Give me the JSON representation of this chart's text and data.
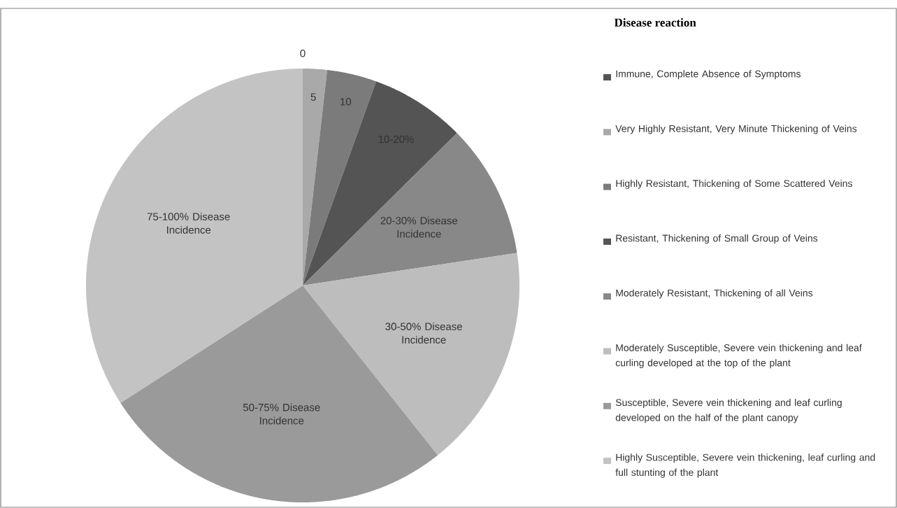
{
  "chart_data": {
    "type": "pie",
    "legend_title": "Disease reaction",
    "legend": "right",
    "categories": [
      "Immune, Complete Absence of Symptoms",
      "Very Highly Resistant, Very Minute Thickening of Veins",
      "Highly Resistant, Thickening of Some Scattered Veins",
      "Resistant, Thickening of Small Group of Veins",
      "Moderately Resistant, Thickening of all Veins",
      "Moderately Susceptible, Severe vein thickening and leaf curling developed at the top of the plant",
      "Susceptible, Severe vein thickening and leaf curling developed on the half of the plant canopy",
      "Highly Susceptible, Severe vein thickening, leaf curling and full stunting of the plant"
    ],
    "values": [
      0,
      1.8,
      3.7,
      7.1,
      10,
      16.7,
      26.6,
      34.1
    ],
    "colors": [
      "#555555",
      "#a9a9a9",
      "#7b7b7b",
      "#545454",
      "#888888",
      "#bdbdbd",
      "#9a9a9a",
      "#c3c3c3"
    ],
    "annotations": [
      "0",
      "5",
      "10",
      "10-20%",
      "20-30% Disease Incidence",
      "30-50% Disease Incidence",
      "50-75% Disease Incidence",
      "75-100% Disease Incidence"
    ]
  }
}
